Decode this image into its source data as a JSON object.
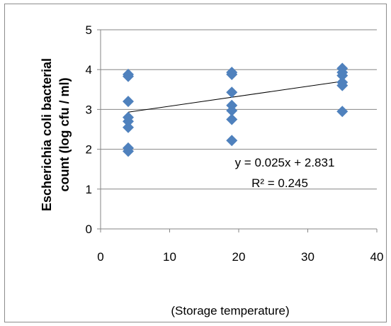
{
  "chart_data": {
    "type": "scatter",
    "xlabel": "(Storage temperature)",
    "ylabel": "Escherichia coli bacterial count (log cfu / ml)",
    "ylabel_lines": [
      "Escherichia coli bacterial",
      "count (log cfu / ml)"
    ],
    "xlim": [
      0,
      40
    ],
    "ylim": [
      0,
      5
    ],
    "x_ticks": [
      "0",
      "10",
      "20",
      "30",
      "40"
    ],
    "y_ticks": [
      "0",
      "1",
      "2",
      "3",
      "4",
      "5"
    ],
    "grid": "horizontal",
    "marker": "diamond",
    "marker_color": "#4f81bd",
    "points": [
      {
        "x": 4,
        "y": 3.88
      },
      {
        "x": 4,
        "y": 3.83
      },
      {
        "x": 4,
        "y": 3.2
      },
      {
        "x": 4,
        "y": 2.8
      },
      {
        "x": 4,
        "y": 2.7
      },
      {
        "x": 4,
        "y": 2.55
      },
      {
        "x": 4,
        "y": 2.03
      },
      {
        "x": 4,
        "y": 1.95
      },
      {
        "x": 19,
        "y": 3.93
      },
      {
        "x": 19,
        "y": 3.88
      },
      {
        "x": 19,
        "y": 3.43
      },
      {
        "x": 19,
        "y": 3.1
      },
      {
        "x": 19,
        "y": 2.97
      },
      {
        "x": 19,
        "y": 2.75
      },
      {
        "x": 19,
        "y": 2.22
      },
      {
        "x": 35,
        "y": 4.03
      },
      {
        "x": 35,
        "y": 3.93
      },
      {
        "x": 35,
        "y": 3.85
      },
      {
        "x": 35,
        "y": 3.68
      },
      {
        "x": 35,
        "y": 3.6
      },
      {
        "x": 35,
        "y": 2.95
      }
    ],
    "trendline": {
      "slope": 0.025,
      "intercept": 2.831,
      "x_range": [
        4,
        35
      ],
      "color": "#000000"
    },
    "annotations": {
      "equation": "y = 0.025x + 2.831",
      "r2": "R² = 0.245"
    }
  }
}
